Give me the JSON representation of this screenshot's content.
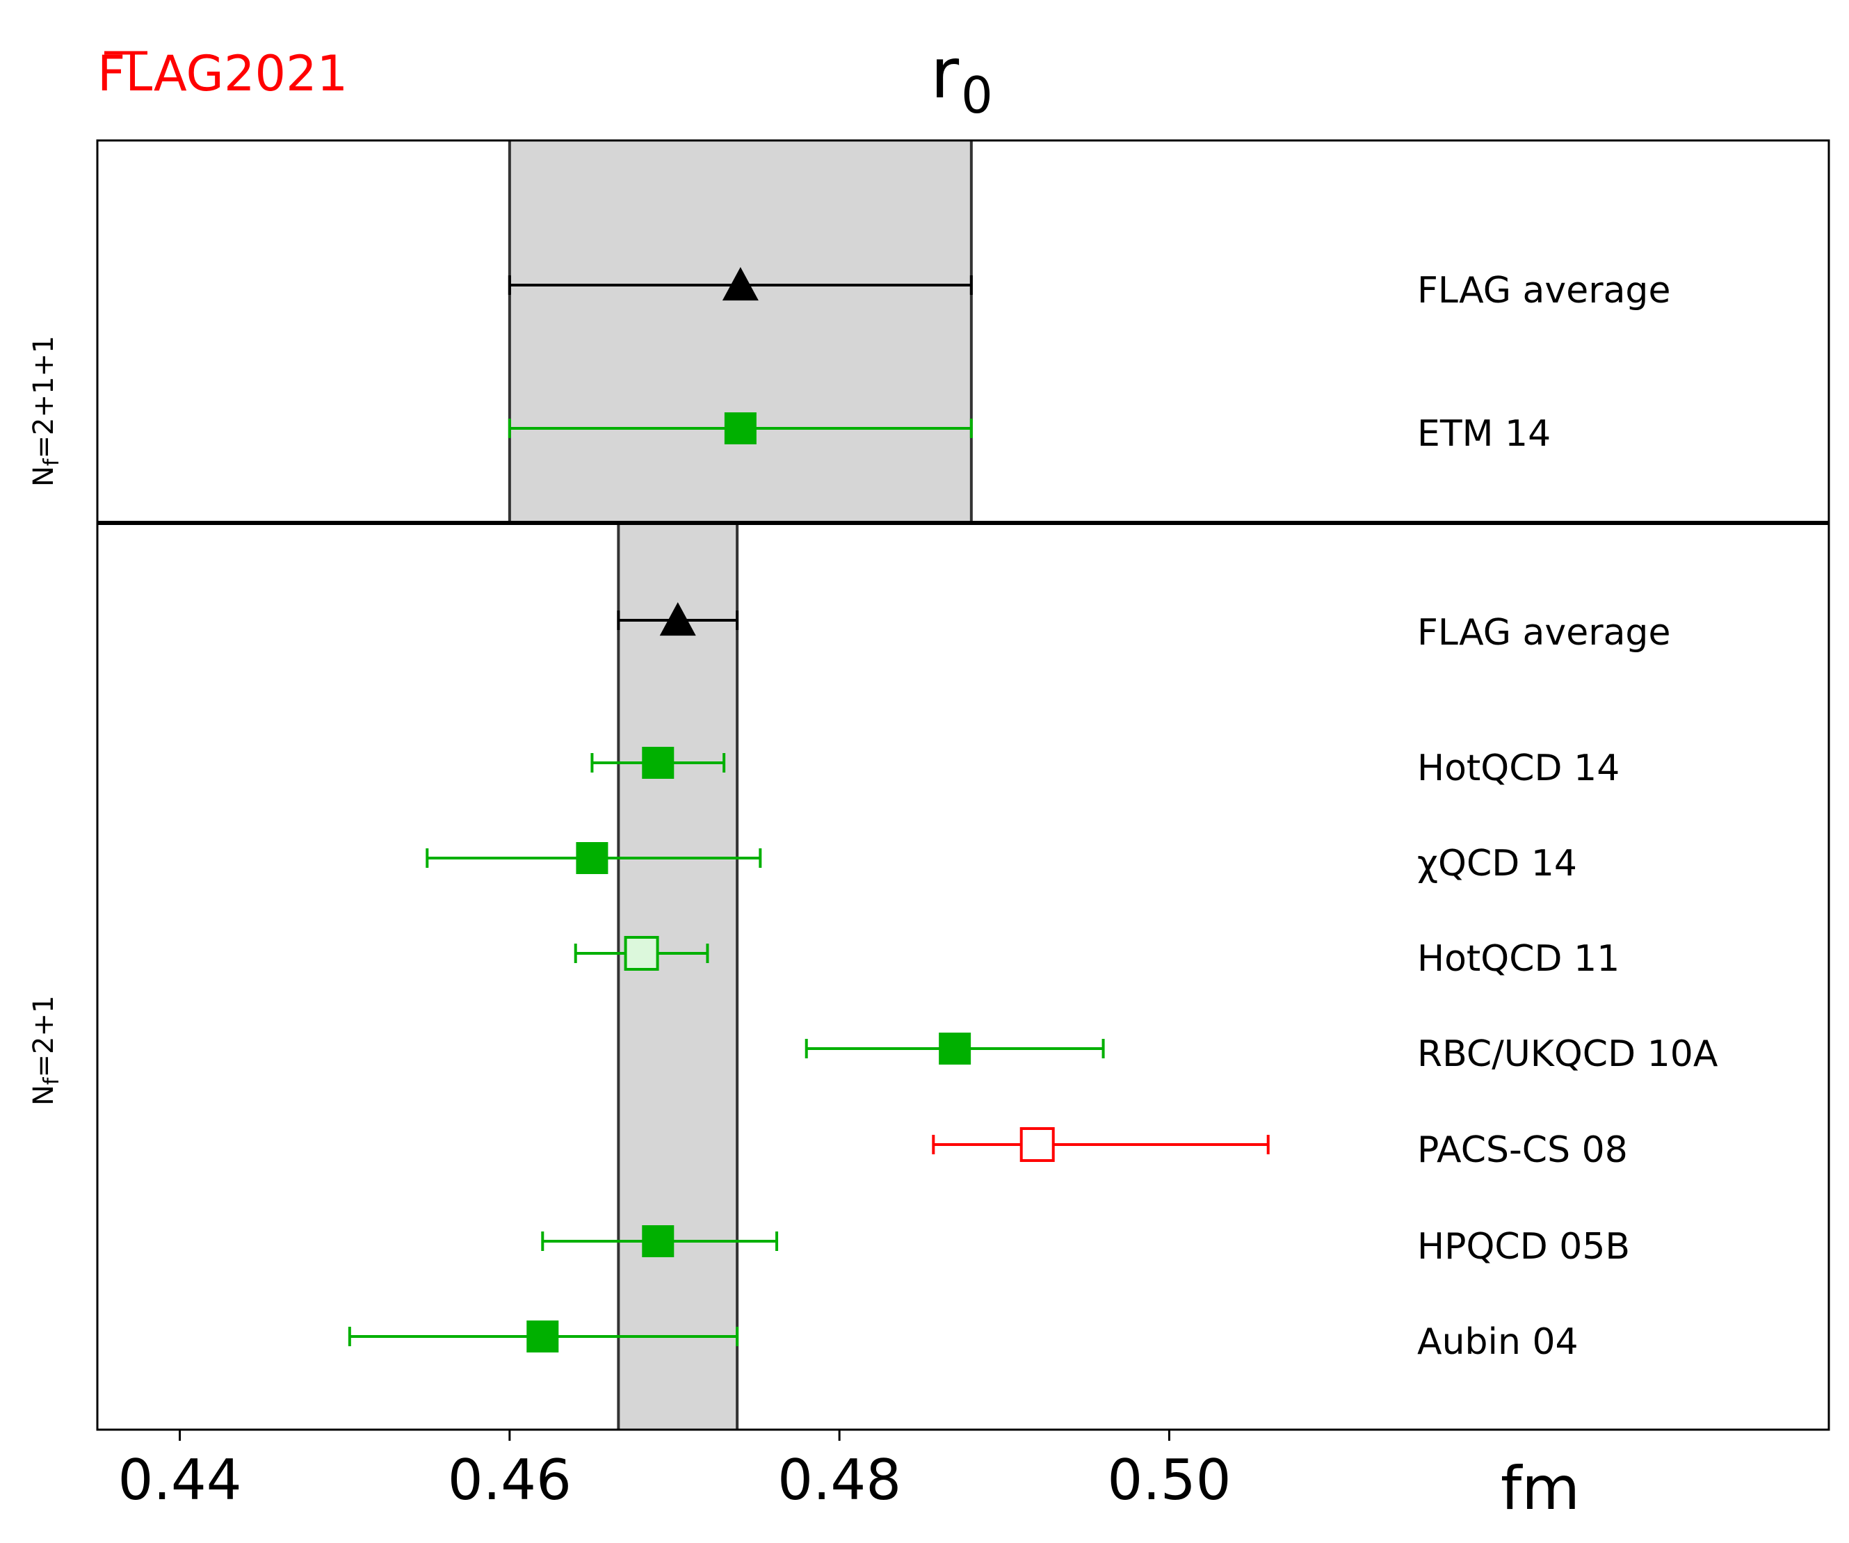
{
  "chart_data": {
    "type": "scatter",
    "title": "r",
    "title_subscript": "0",
    "logo": "FLAG",
    "logo_year": "2021",
    "xlabel": "fm",
    "xlim": [
      0.435,
      0.54
    ],
    "xticks": [
      0.44,
      0.46,
      0.48,
      0.5
    ],
    "xtick_labels": [
      "0.44",
      "0.46",
      "0.48",
      "0.50"
    ],
    "panels": [
      {
        "label": "N_f = 2+1+1",
        "label_main": "N",
        "label_sub": "f",
        "label_rest": "=2+1+1",
        "band": [
          0.46,
          0.488
        ],
        "points": [
          {
            "name": "FLAG average",
            "value": 0.474,
            "err_lo": 0.46,
            "err_hi": 0.488,
            "marker": "triangle",
            "color": "#000000",
            "filled": true
          },
          {
            "name": "ETM 14",
            "value": 0.474,
            "err_lo": 0.46,
            "err_hi": 0.488,
            "marker": "square",
            "color": "#00b000",
            "filled": true
          }
        ]
      },
      {
        "label": "N_f = 2+1",
        "label_main": "N",
        "label_sub": "f",
        "label_rest": "=2+1",
        "band": [
          0.4666,
          0.4738
        ],
        "points": [
          {
            "name": "FLAG average",
            "value": 0.4702,
            "err_lo": 0.4666,
            "err_hi": 0.4738,
            "marker": "triangle",
            "color": "#000000",
            "filled": true
          },
          {
            "name": "HotQCD 14",
            "value": 0.469,
            "err_lo": 0.465,
            "err_hi": 0.473,
            "marker": "square",
            "color": "#00b000",
            "filled": true
          },
          {
            "name": "χQCD 14",
            "value": 0.465,
            "err_lo": 0.455,
            "err_hi": 0.4752,
            "marker": "square",
            "color": "#00b000",
            "filled": true
          },
          {
            "name": "HotQCD 11",
            "value": 0.468,
            "err_lo": 0.464,
            "err_hi": 0.472,
            "marker": "square",
            "color": "#00b000",
            "filled": false,
            "fill": "#dcf8dc"
          },
          {
            "name": "RBC/UKQCD 10A",
            "value": 0.487,
            "err_lo": 0.478,
            "err_hi": 0.496,
            "marker": "square",
            "color": "#00b000",
            "filled": true
          },
          {
            "name": "PACS-CS 08",
            "value": 0.492,
            "err_lo": 0.4857,
            "err_hi": 0.506,
            "marker": "square",
            "color": "#ff0000",
            "filled": false,
            "fill": "#ffffff"
          },
          {
            "name": "HPQCD 05B",
            "value": 0.469,
            "err_lo": 0.462,
            "err_hi": 0.4762,
            "marker": "square",
            "color": "#00b000",
            "filled": true
          },
          {
            "name": "Aubin 04",
            "value": 0.462,
            "err_lo": 0.4503,
            "err_hi": 0.4738,
            "marker": "square",
            "color": "#00b000",
            "filled": true
          }
        ]
      }
    ]
  }
}
